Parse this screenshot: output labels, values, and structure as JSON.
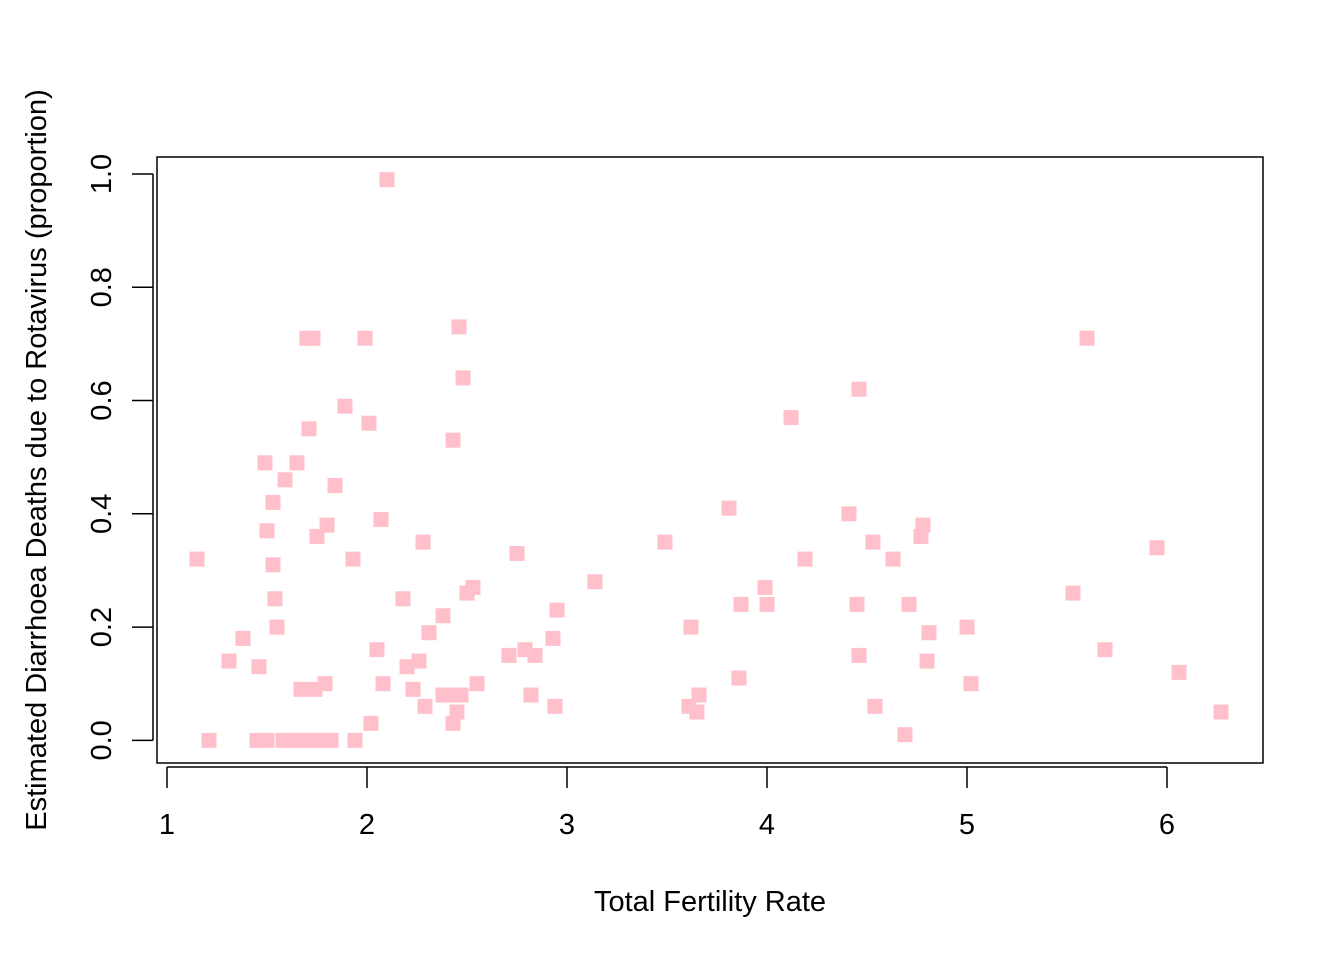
{
  "chart_data": {
    "type": "scatter",
    "title": "",
    "xlabel": "Total Fertility Rate",
    "ylabel": "Estimated Diarrhoea Deaths due to Rotavirus (proportion)",
    "xlim": [
      0.95,
      6.48
    ],
    "ylim": [
      -0.04,
      1.03
    ],
    "xticks": [
      1,
      2,
      3,
      4,
      5,
      6
    ],
    "xtick_labels": [
      "1",
      "2",
      "3",
      "4",
      "5",
      "6"
    ],
    "yticks": [
      0.0,
      0.2,
      0.4,
      0.6,
      0.8,
      1.0
    ],
    "ytick_labels": [
      "0.0",
      "0.2",
      "0.4",
      "0.6",
      "0.8",
      "1.0"
    ],
    "grid": false,
    "marker": "square",
    "marker_color": "#FFC0CB",
    "points": [
      {
        "x": 1.15,
        "y": 0.32
      },
      {
        "x": 1.21,
        "y": 0.0
      },
      {
        "x": 1.31,
        "y": 0.14
      },
      {
        "x": 1.38,
        "y": 0.18
      },
      {
        "x": 1.46,
        "y": 0.13
      },
      {
        "x": 1.45,
        "y": 0.0
      },
      {
        "x": 1.49,
        "y": 0.49
      },
      {
        "x": 1.5,
        "y": 0.37
      },
      {
        "x": 1.5,
        "y": 0.0
      },
      {
        "x": 1.53,
        "y": 0.42
      },
      {
        "x": 1.53,
        "y": 0.31
      },
      {
        "x": 1.54,
        "y": 0.25
      },
      {
        "x": 1.55,
        "y": 0.2
      },
      {
        "x": 1.59,
        "y": 0.46
      },
      {
        "x": 1.58,
        "y": 0.0
      },
      {
        "x": 1.65,
        "y": 0.49
      },
      {
        "x": 1.63,
        "y": 0.0
      },
      {
        "x": 1.67,
        "y": 0.09
      },
      {
        "x": 1.68,
        "y": 0.0
      },
      {
        "x": 1.7,
        "y": 0.71
      },
      {
        "x": 1.71,
        "y": 0.55
      },
      {
        "x": 1.73,
        "y": 0.71
      },
      {
        "x": 1.74,
        "y": 0.09
      },
      {
        "x": 1.73,
        "y": 0.0
      },
      {
        "x": 1.75,
        "y": 0.36
      },
      {
        "x": 1.78,
        "y": 0.0
      },
      {
        "x": 1.79,
        "y": 0.1
      },
      {
        "x": 1.8,
        "y": 0.38
      },
      {
        "x": 1.82,
        "y": 0.0
      },
      {
        "x": 1.84,
        "y": 0.45
      },
      {
        "x": 1.89,
        "y": 0.59
      },
      {
        "x": 1.93,
        "y": 0.32
      },
      {
        "x": 1.94,
        "y": 0.0
      },
      {
        "x": 1.99,
        "y": 0.71
      },
      {
        "x": 2.01,
        "y": 0.56
      },
      {
        "x": 2.02,
        "y": 0.03
      },
      {
        "x": 2.05,
        "y": 0.16
      },
      {
        "x": 2.07,
        "y": 0.39
      },
      {
        "x": 2.08,
        "y": 0.1
      },
      {
        "x": 2.1,
        "y": 0.99
      },
      {
        "x": 2.18,
        "y": 0.25
      },
      {
        "x": 2.2,
        "y": 0.13
      },
      {
        "x": 2.23,
        "y": 0.09
      },
      {
        "x": 2.26,
        "y": 0.14
      },
      {
        "x": 2.28,
        "y": 0.35
      },
      {
        "x": 2.29,
        "y": 0.06
      },
      {
        "x": 2.31,
        "y": 0.19
      },
      {
        "x": 2.38,
        "y": 0.22
      },
      {
        "x": 2.38,
        "y": 0.08
      },
      {
        "x": 2.43,
        "y": 0.53
      },
      {
        "x": 2.43,
        "y": 0.03
      },
      {
        "x": 2.44,
        "y": 0.08
      },
      {
        "x": 2.45,
        "y": 0.05
      },
      {
        "x": 2.46,
        "y": 0.73
      },
      {
        "x": 2.47,
        "y": 0.08
      },
      {
        "x": 2.48,
        "y": 0.64
      },
      {
        "x": 2.5,
        "y": 0.26
      },
      {
        "x": 2.53,
        "y": 0.27
      },
      {
        "x": 2.55,
        "y": 0.1
      },
      {
        "x": 2.71,
        "y": 0.15
      },
      {
        "x": 2.75,
        "y": 0.33
      },
      {
        "x": 2.79,
        "y": 0.16
      },
      {
        "x": 2.82,
        "y": 0.08
      },
      {
        "x": 2.84,
        "y": 0.15
      },
      {
        "x": 2.93,
        "y": 0.18
      },
      {
        "x": 2.94,
        "y": 0.06
      },
      {
        "x": 2.95,
        "y": 0.23
      },
      {
        "x": 3.14,
        "y": 0.28
      },
      {
        "x": 3.49,
        "y": 0.35
      },
      {
        "x": 3.61,
        "y": 0.06
      },
      {
        "x": 3.62,
        "y": 0.2
      },
      {
        "x": 3.65,
        "y": 0.05
      },
      {
        "x": 3.66,
        "y": 0.08
      },
      {
        "x": 3.81,
        "y": 0.41
      },
      {
        "x": 3.86,
        "y": 0.11
      },
      {
        "x": 3.87,
        "y": 0.24
      },
      {
        "x": 3.99,
        "y": 0.27
      },
      {
        "x": 4.0,
        "y": 0.24
      },
      {
        "x": 4.12,
        "y": 0.57
      },
      {
        "x": 4.19,
        "y": 0.32
      },
      {
        "x": 4.41,
        "y": 0.4
      },
      {
        "x": 4.45,
        "y": 0.24
      },
      {
        "x": 4.46,
        "y": 0.15
      },
      {
        "x": 4.46,
        "y": 0.62
      },
      {
        "x": 4.53,
        "y": 0.35
      },
      {
        "x": 4.54,
        "y": 0.06
      },
      {
        "x": 4.63,
        "y": 0.32
      },
      {
        "x": 4.69,
        "y": 0.01
      },
      {
        "x": 4.71,
        "y": 0.24
      },
      {
        "x": 4.77,
        "y": 0.36
      },
      {
        "x": 4.78,
        "y": 0.38
      },
      {
        "x": 4.8,
        "y": 0.14
      },
      {
        "x": 4.81,
        "y": 0.19
      },
      {
        "x": 5.0,
        "y": 0.2
      },
      {
        "x": 5.02,
        "y": 0.1
      },
      {
        "x": 5.53,
        "y": 0.26
      },
      {
        "x": 5.6,
        "y": 0.71
      },
      {
        "x": 5.69,
        "y": 0.16
      },
      {
        "x": 5.95,
        "y": 0.34
      },
      {
        "x": 6.06,
        "y": 0.12
      },
      {
        "x": 6.27,
        "y": 0.05
      }
    ]
  }
}
